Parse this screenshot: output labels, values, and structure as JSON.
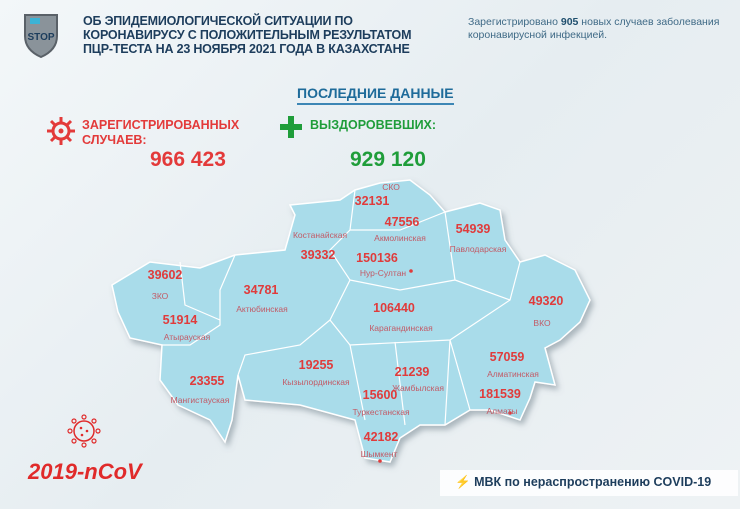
{
  "header": {
    "title_lines": [
      "ОБ ЭПИДЕМИОЛОГИЧЕСКОЙ СИТУАЦИИ ПО",
      "КОРОНАВИРУСУ С ПОЛОЖИТЕЛЬНЫМ РЕЗУЛЬТАТОМ",
      "ПЦР-ТЕСТА НА 23 НОЯБРЯ 2021 ГОДА В КАЗАХСТАНЕ"
    ],
    "logo_text": "STOP",
    "note_prefix": "Зарегистрировано ",
    "note_count": "905",
    "note_suffix": " новых случаев заболевания коронавирусной инфекцией."
  },
  "latest_label": "ПОСЛЕДНИЕ ДАННЫЕ",
  "registered": {
    "label_line1": "ЗАРЕГИСТРИРОВАННЫХ",
    "label_line2": "СЛУЧАЕВ:",
    "value": "966 423"
  },
  "recovered": {
    "label": "ВЫЗДОРОВЕВШИХ:",
    "value": "929 120"
  },
  "regions": [
    {
      "name": "СКО",
      "value": "32131"
    },
    {
      "name": "Акмолинская",
      "value": "47556"
    },
    {
      "name": "Костанайская",
      "value": "39332"
    },
    {
      "name": "Павлодарская",
      "value": "54939"
    },
    {
      "name": "Нур-Султан",
      "value": "150136"
    },
    {
      "name": "ЗКО",
      "value": "39602"
    },
    {
      "name": "Актюбинская",
      "value": "34781"
    },
    {
      "name": "Карагандинская",
      "value": "106440"
    },
    {
      "name": "ВКО",
      "value": "49320"
    },
    {
      "name": "Атырауская",
      "value": "51914"
    },
    {
      "name": "Алматинская",
      "value": "57059"
    },
    {
      "name": "Кызылординская",
      "value": "19255"
    },
    {
      "name": "Жамбылская",
      "value": "21239"
    },
    {
      "name": "Мангистауская",
      "value": "23355"
    },
    {
      "name": "Туркестанская",
      "value": "15600"
    },
    {
      "name": "Алматы",
      "value": "181539"
    },
    {
      "name": "Шымкент",
      "value": "42182"
    }
  ],
  "footer": {
    "ncov": "2019-nCoV",
    "mvk": "МВК по нераспространению COVID-19"
  },
  "colors": {
    "map_fill": "#a9dcea",
    "red": "#e33a3a",
    "green": "#1f9d3a",
    "navy": "#1d3d5c"
  }
}
